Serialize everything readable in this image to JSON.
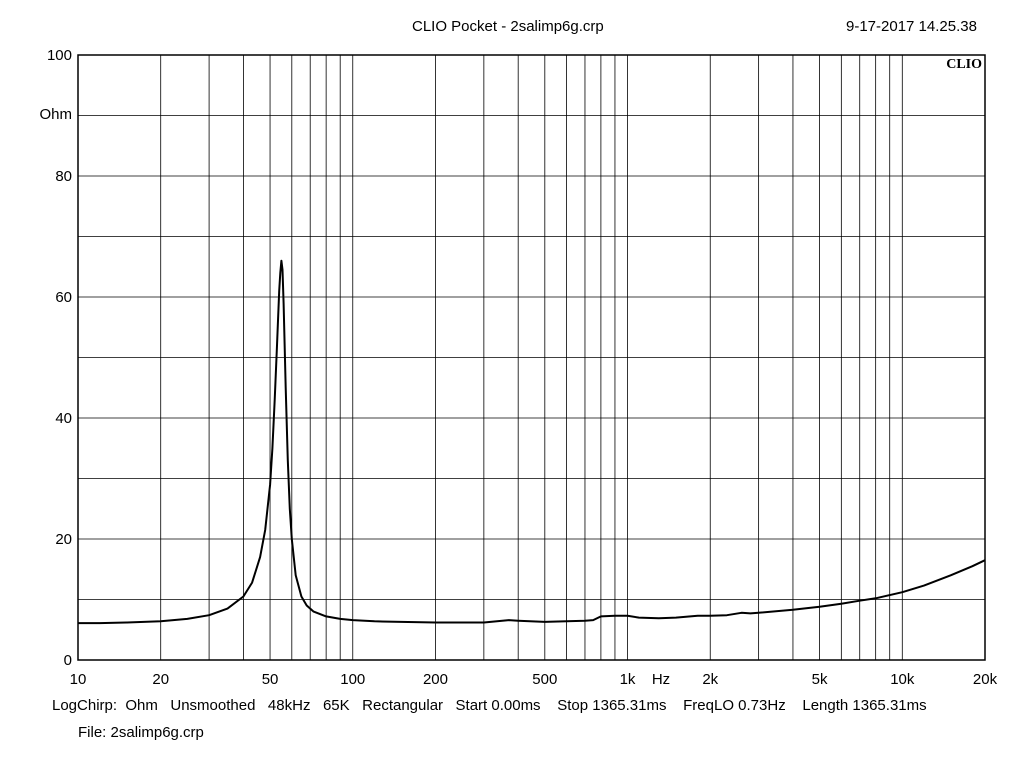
{
  "header": {
    "title": "CLIO Pocket - 2salimp6g.crp",
    "datetime": "9-17-2017 14.25.38"
  },
  "logo": "CLIO",
  "footer": {
    "settings": "LogChirp:  Ohm   Unsmoothed   48kHz   65K   Rectangular   Start 0.00ms    Stop 1365.31ms    FreqLO 0.73Hz    Length 1365.31ms",
    "file": "File: 2salimp6g.crp"
  },
  "chart_data": {
    "type": "line",
    "title": "",
    "xlabel": "Hz",
    "ylabel": "Ohm",
    "xscale": "log",
    "xlim": [
      10,
      20000
    ],
    "ylim": [
      0,
      100
    ],
    "grid": true,
    "x_tick_labels": [
      {
        "value": 10,
        "label": "10"
      },
      {
        "value": 20,
        "label": "20"
      },
      {
        "value": 50,
        "label": "50"
      },
      {
        "value": 100,
        "label": "100"
      },
      {
        "value": 200,
        "label": "200"
      },
      {
        "value": 500,
        "label": "500"
      },
      {
        "value": 1000,
        "label": "1k"
      },
      {
        "value": 2000,
        "label": "2k"
      },
      {
        "value": 5000,
        "label": "5k"
      },
      {
        "value": 10000,
        "label": "10k"
      },
      {
        "value": 20000,
        "label": "20k"
      }
    ],
    "y_tick_labels": [
      {
        "value": 0,
        "label": "0"
      },
      {
        "value": 20,
        "label": "20"
      },
      {
        "value": 40,
        "label": "40"
      },
      {
        "value": 60,
        "label": "60"
      },
      {
        "value": 80,
        "label": "80"
      },
      {
        "value": 100,
        "label": "100"
      }
    ],
    "y_unit_label": "Ohm",
    "x_unit_label": "Hz",
    "series": [
      {
        "color": "#000000",
        "x": [
          10,
          12,
          15,
          20,
          25,
          30,
          35,
          40,
          43,
          46,
          48,
          50,
          51,
          52,
          53,
          54,
          54.5,
          55,
          55.5,
          56,
          57,
          58,
          59,
          60,
          62,
          65,
          68,
          72,
          80,
          90,
          100,
          120,
          150,
          200,
          300,
          370,
          400,
          500,
          600,
          700,
          750,
          800,
          900,
          1000,
          1100,
          1300,
          1500,
          1800,
          2000,
          2300,
          2600,
          2800,
          3000,
          4000,
          5000,
          6000,
          7000,
          8000,
          10000,
          12000,
          15000,
          18000,
          20000
        ],
        "y": [
          6.1,
          6.1,
          6.2,
          6.4,
          6.8,
          7.4,
          8.5,
          10.5,
          12.8,
          17,
          21.5,
          29,
          35,
          43,
          52,
          61,
          64,
          66,
          64.5,
          59,
          45,
          33,
          25,
          20,
          14,
          10.5,
          9,
          8,
          7.2,
          6.8,
          6.6,
          6.4,
          6.3,
          6.2,
          6.2,
          6.6,
          6.5,
          6.3,
          6.4,
          6.5,
          6.6,
          7.2,
          7.3,
          7.3,
          7.0,
          6.9,
          7.0,
          7.3,
          7.3,
          7.4,
          7.8,
          7.7,
          7.8,
          8.3,
          8.8,
          9.3,
          9.8,
          10.2,
          11.2,
          12.3,
          14.0,
          15.5,
          16.5
        ]
      }
    ]
  }
}
